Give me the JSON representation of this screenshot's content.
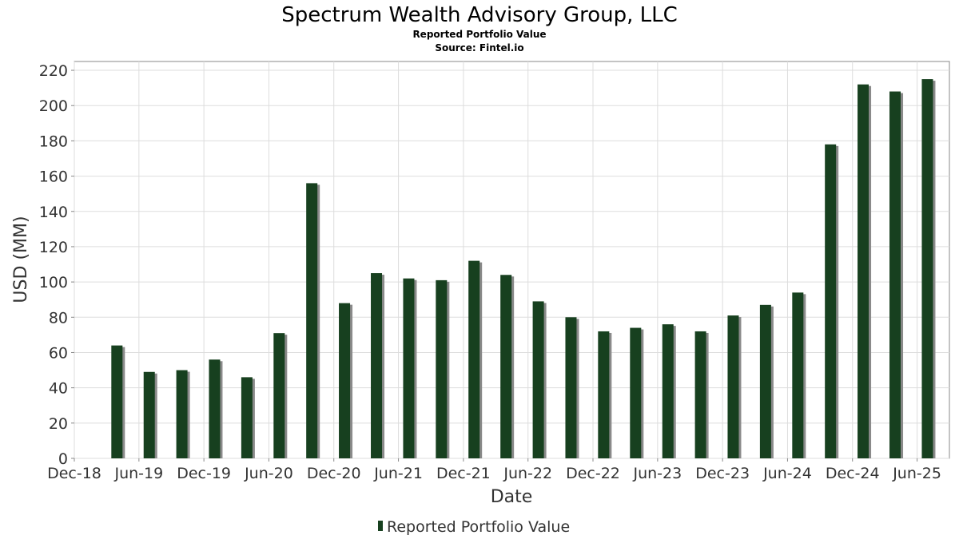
{
  "chart_data": {
    "type": "bar",
    "title": "Spectrum Wealth Advisory Group, LLC",
    "subtitles": [
      "Reported Portfolio Value",
      "Source: Fintel.io"
    ],
    "xlabel": "Date",
    "ylabel": "USD (MM)",
    "ylim": [
      0,
      225
    ],
    "yticks": [
      0,
      20,
      40,
      60,
      80,
      100,
      120,
      140,
      160,
      180,
      200,
      220
    ],
    "xlim": [
      "2018-12-01",
      "2025-08-31"
    ],
    "xticks": [
      {
        "date": "2018-12-01",
        "label": "Dec-18"
      },
      {
        "date": "2019-06-01",
        "label": "Jun-19"
      },
      {
        "date": "2019-12-01",
        "label": "Dec-19"
      },
      {
        "date": "2020-06-01",
        "label": "Jun-20"
      },
      {
        "date": "2020-12-01",
        "label": "Dec-20"
      },
      {
        "date": "2021-06-01",
        "label": "Jun-21"
      },
      {
        "date": "2021-12-01",
        "label": "Dec-21"
      },
      {
        "date": "2022-06-01",
        "label": "Jun-22"
      },
      {
        "date": "2022-12-01",
        "label": "Dec-22"
      },
      {
        "date": "2023-06-01",
        "label": "Jun-23"
      },
      {
        "date": "2023-12-01",
        "label": "Dec-23"
      },
      {
        "date": "2024-06-01",
        "label": "Jun-24"
      },
      {
        "date": "2024-12-01",
        "label": "Dec-24"
      },
      {
        "date": "2025-06-01",
        "label": "Jun-25"
      }
    ],
    "grid": true,
    "legend_position": "bottom",
    "series": [
      {
        "name": "Reported Portfolio Value",
        "color": "#17401f",
        "points": [
          {
            "x": "2019-03-31",
            "y": 64
          },
          {
            "x": "2019-06-30",
            "y": 49
          },
          {
            "x": "2019-09-30",
            "y": 50
          },
          {
            "x": "2019-12-31",
            "y": 56
          },
          {
            "x": "2020-03-31",
            "y": 46
          },
          {
            "x": "2020-06-30",
            "y": 71
          },
          {
            "x": "2020-09-30",
            "y": 156
          },
          {
            "x": "2020-12-31",
            "y": 88
          },
          {
            "x": "2021-03-31",
            "y": 105
          },
          {
            "x": "2021-06-30",
            "y": 102
          },
          {
            "x": "2021-09-30",
            "y": 101
          },
          {
            "x": "2021-12-31",
            "y": 112
          },
          {
            "x": "2022-03-31",
            "y": 104
          },
          {
            "x": "2022-06-30",
            "y": 89
          },
          {
            "x": "2022-09-30",
            "y": 80
          },
          {
            "x": "2022-12-31",
            "y": 72
          },
          {
            "x": "2023-03-31",
            "y": 74
          },
          {
            "x": "2023-06-30",
            "y": 76
          },
          {
            "x": "2023-09-30",
            "y": 72
          },
          {
            "x": "2023-12-31",
            "y": 81
          },
          {
            "x": "2024-03-31",
            "y": 87
          },
          {
            "x": "2024-06-30",
            "y": 94
          },
          {
            "x": "2024-09-30",
            "y": 178
          },
          {
            "x": "2024-12-31",
            "y": 212
          },
          {
            "x": "2025-03-31",
            "y": 208
          },
          {
            "x": "2025-06-30",
            "y": 215
          }
        ]
      }
    ],
    "colors": {
      "bar": "#17401f",
      "bar_shadow": "#8a8a8a",
      "grid": "#dddddd",
      "frame": "#888888"
    }
  }
}
